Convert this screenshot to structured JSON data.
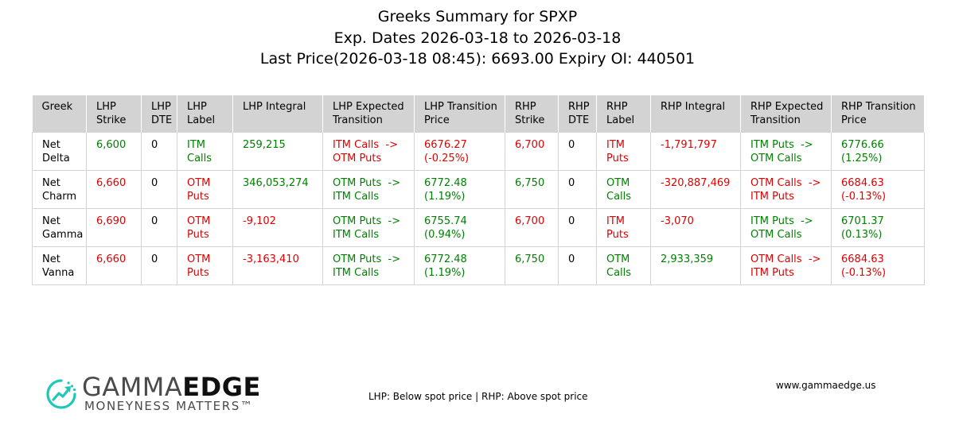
{
  "title": {
    "line1": "Greeks Summary for SPXP",
    "line2": "Exp. Dates 2026-03-18 to 2026-03-18",
    "line3": "Last Price(2026-03-18 08:45): 6693.00 Expiry OI: 440501"
  },
  "chart_data": {
    "type": "table",
    "columns": [
      [
        "Greek"
      ],
      [
        "LHP",
        "Strike"
      ],
      [
        "LHP",
        "DTE"
      ],
      [
        "LHP",
        "Label"
      ],
      [
        "LHP Integral"
      ],
      [
        "LHP Expected",
        "Transition"
      ],
      [
        "LHP Transition",
        "Price"
      ],
      [
        "RHP",
        "Strike"
      ],
      [
        "RHP",
        "DTE"
      ],
      [
        "RHP",
        "Label"
      ],
      [
        "RHP Integral"
      ],
      [
        "RHP Expected",
        "Transition"
      ],
      [
        "RHP Transition",
        "Price"
      ]
    ],
    "rows": [
      [
        {
          "l": [
            "Net",
            "Delta"
          ],
          "c": "k"
        },
        {
          "l": [
            "6,600"
          ],
          "c": "g"
        },
        {
          "l": [
            "0"
          ],
          "c": "k"
        },
        {
          "l": [
            "ITM",
            "Calls"
          ],
          "c": "g"
        },
        {
          "l": [
            "259,215"
          ],
          "c": "g"
        },
        {
          "l": [
            "ITM Calls  ->",
            "OTM Puts"
          ],
          "c": "r"
        },
        {
          "l": [
            "6676.27",
            "(-0.25%)"
          ],
          "c": "r"
        },
        {
          "l": [
            "6,700"
          ],
          "c": "r"
        },
        {
          "l": [
            "0"
          ],
          "c": "k"
        },
        {
          "l": [
            "ITM",
            "Puts"
          ],
          "c": "r"
        },
        {
          "l": [
            "-1,791,797"
          ],
          "c": "r"
        },
        {
          "l": [
            "ITM Puts  ->",
            "OTM Calls"
          ],
          "c": "g"
        },
        {
          "l": [
            "6776.66",
            "(1.25%)"
          ],
          "c": "g"
        }
      ],
      [
        {
          "l": [
            "Net",
            "Charm"
          ],
          "c": "k"
        },
        {
          "l": [
            "6,660"
          ],
          "c": "r"
        },
        {
          "l": [
            "0"
          ],
          "c": "k"
        },
        {
          "l": [
            "OTM",
            "Puts"
          ],
          "c": "r"
        },
        {
          "l": [
            "346,053,274"
          ],
          "c": "g"
        },
        {
          "l": [
            "OTM Puts  ->",
            "ITM Calls"
          ],
          "c": "g"
        },
        {
          "l": [
            "6772.48",
            "(1.19%)"
          ],
          "c": "g"
        },
        {
          "l": [
            "6,750"
          ],
          "c": "g"
        },
        {
          "l": [
            "0"
          ],
          "c": "k"
        },
        {
          "l": [
            "OTM",
            "Calls"
          ],
          "c": "g"
        },
        {
          "l": [
            "-320,887,469"
          ],
          "c": "r"
        },
        {
          "l": [
            "OTM Calls  ->",
            "ITM Puts"
          ],
          "c": "r"
        },
        {
          "l": [
            "6684.63",
            "(-0.13%)"
          ],
          "c": "r"
        }
      ],
      [
        {
          "l": [
            "Net",
            "Gamma"
          ],
          "c": "k"
        },
        {
          "l": [
            "6,690"
          ],
          "c": "r"
        },
        {
          "l": [
            "0"
          ],
          "c": "k"
        },
        {
          "l": [
            "OTM",
            "Puts"
          ],
          "c": "r"
        },
        {
          "l": [
            "-9,102"
          ],
          "c": "r"
        },
        {
          "l": [
            "OTM Puts  ->",
            "ITM Calls"
          ],
          "c": "g"
        },
        {
          "l": [
            "6755.74",
            "(0.94%)"
          ],
          "c": "g"
        },
        {
          "l": [
            "6,700"
          ],
          "c": "r"
        },
        {
          "l": [
            "0"
          ],
          "c": "k"
        },
        {
          "l": [
            "ITM",
            "Puts"
          ],
          "c": "r"
        },
        {
          "l": [
            "-3,070"
          ],
          "c": "r"
        },
        {
          "l": [
            "ITM Puts  ->",
            "OTM Calls"
          ],
          "c": "g"
        },
        {
          "l": [
            "6701.37",
            "(0.13%)"
          ],
          "c": "g"
        }
      ],
      [
        {
          "l": [
            "Net",
            "Vanna"
          ],
          "c": "k"
        },
        {
          "l": [
            "6,660"
          ],
          "c": "r"
        },
        {
          "l": [
            "0"
          ],
          "c": "k"
        },
        {
          "l": [
            "OTM",
            "Puts"
          ],
          "c": "r"
        },
        {
          "l": [
            "-3,163,410"
          ],
          "c": "r"
        },
        {
          "l": [
            "OTM Puts  ->",
            "ITM Calls"
          ],
          "c": "g"
        },
        {
          "l": [
            "6772.48",
            "(1.19%)"
          ],
          "c": "g"
        },
        {
          "l": [
            "6,750"
          ],
          "c": "g"
        },
        {
          "l": [
            "0"
          ],
          "c": "k"
        },
        {
          "l": [
            "OTM",
            "Calls"
          ],
          "c": "g"
        },
        {
          "l": [
            "2,933,359"
          ],
          "c": "g"
        },
        {
          "l": [
            "OTM Calls  ->",
            "ITM Puts"
          ],
          "c": "r"
        },
        {
          "l": [
            "6684.63",
            "(-0.13%)"
          ],
          "c": "r"
        }
      ]
    ]
  },
  "footer": {
    "note": "LHP: Below spot price | RHP: Above spot price",
    "website": "www.gammaedge.us"
  },
  "logo": {
    "word_light": "GAMMA",
    "word_bold": "EDGE",
    "tagline": "MONEYNESS MATTERS™",
    "icon": "gammaedge-arrow-circle-icon",
    "accent_color": "#1fc7b6"
  },
  "colors": {
    "positive": "#008000",
    "negative": "#e00000",
    "header_bg": "#d3d3d3"
  }
}
